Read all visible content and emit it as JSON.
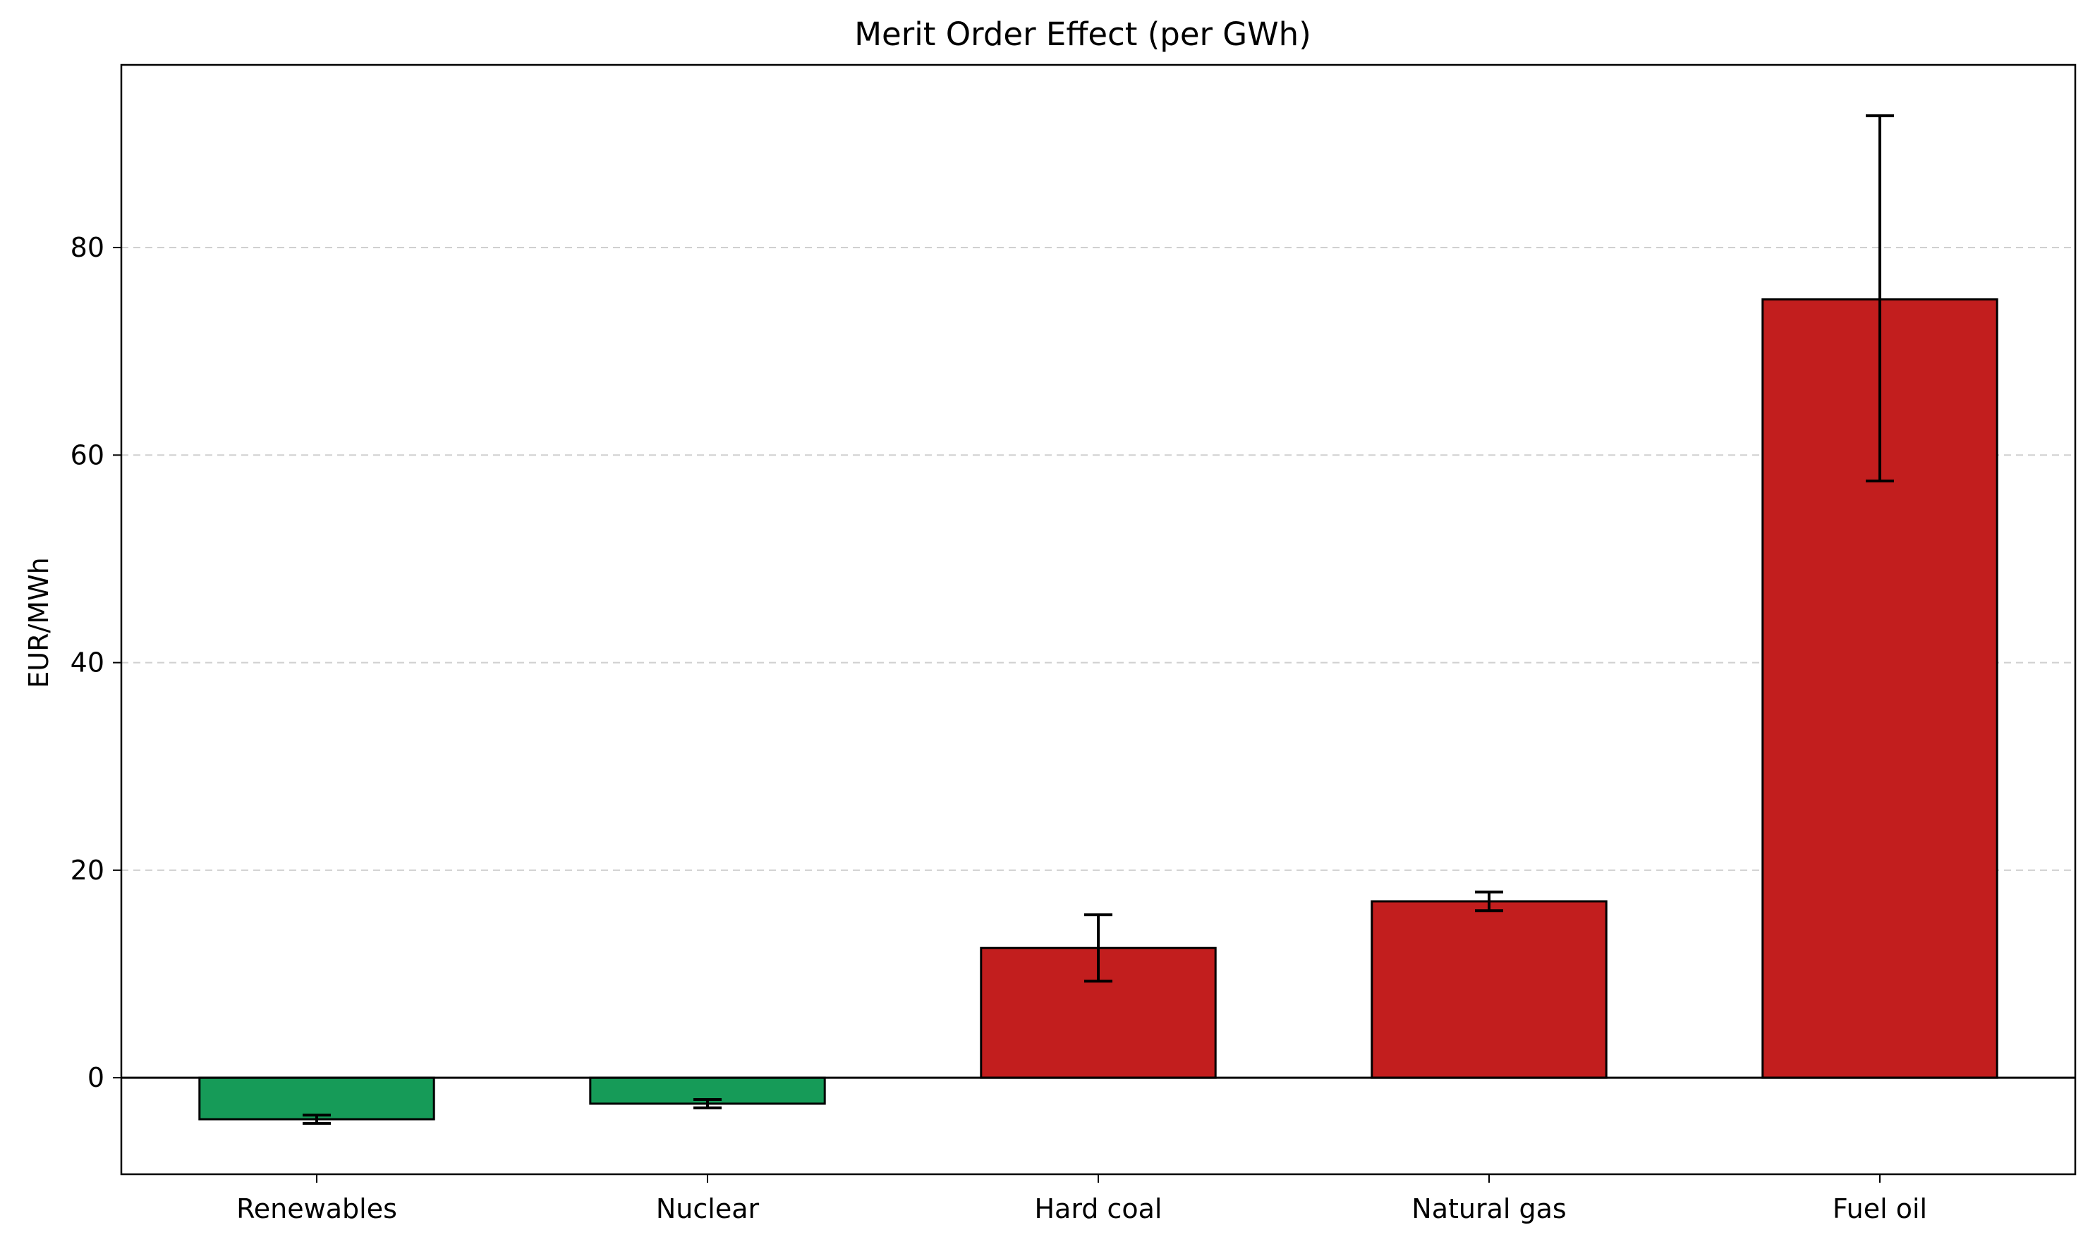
{
  "chart_data": {
    "type": "bar",
    "title": "Merit Order Effect (per GWh)",
    "xlabel": "",
    "ylabel": "EUR/MWh",
    "categories": [
      "Renewables",
      "Nuclear",
      "Hard coal",
      "Natural gas",
      "Fuel oil"
    ],
    "values": [
      -4.0,
      -2.5,
      12.5,
      17.0,
      75.0
    ],
    "error_low": [
      -4.4,
      -2.9,
      9.3,
      16.1,
      57.5
    ],
    "error_high": [
      -3.6,
      -2.1,
      15.7,
      17.9,
      92.7
    ],
    "colors": [
      "#169b58",
      "#169b58",
      "#c21e1e",
      "#c21e1e",
      "#c21e1e"
    ],
    "edge_color": "#000000",
    "ylim": [
      -9.3,
      97.6
    ],
    "yticks": [
      0,
      20,
      40,
      60,
      80
    ],
    "grid": "y-dashed",
    "zero_line": true,
    "legend": "none"
  }
}
